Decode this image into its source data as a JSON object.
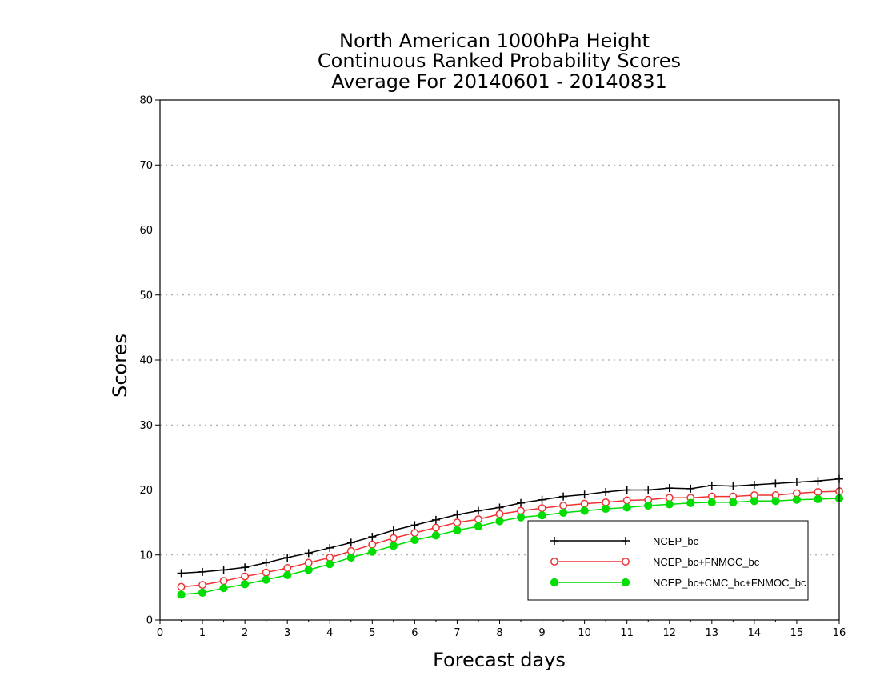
{
  "chart_data": {
    "type": "line",
    "title": [
      "North American 1000hPa Height",
      "Continuous Ranked Probability Scores",
      "Average For 20140601 - 20140831"
    ],
    "xlabel": "Forecast days",
    "ylabel": "Scores",
    "xlim": [
      0,
      16
    ],
    "ylim": [
      0,
      80
    ],
    "xticks": [
      0,
      1,
      2,
      3,
      4,
      5,
      6,
      7,
      8,
      9,
      10,
      11,
      12,
      13,
      14,
      15,
      16
    ],
    "yticks": [
      0,
      10,
      20,
      30,
      40,
      50,
      60,
      70,
      80
    ],
    "grid": "horizontal dotted",
    "legend_position": "lower-right",
    "x": [
      0.5,
      1,
      1.5,
      2,
      2.5,
      3,
      3.5,
      4,
      4.5,
      5,
      5.5,
      6,
      6.5,
      7,
      7.5,
      8,
      8.5,
      9,
      9.5,
      10,
      10.5,
      11,
      11.5,
      12,
      12.5,
      13,
      13.5,
      14,
      14.5,
      15,
      15.5,
      16
    ],
    "series": [
      {
        "name": "NCEP_bc",
        "color": "#000000",
        "marker": "plus",
        "values": [
          7.2,
          7.4,
          7.7,
          8.1,
          8.8,
          9.6,
          10.3,
          11.1,
          11.9,
          12.8,
          13.8,
          14.6,
          15.4,
          16.2,
          16.8,
          17.3,
          18.0,
          18.5,
          19.0,
          19.3,
          19.7,
          20.0,
          20.0,
          20.3,
          20.2,
          20.7,
          20.6,
          20.8,
          21.0,
          21.2,
          21.4,
          21.7
        ]
      },
      {
        "name": "NCEP_bc+FNMOC_bc",
        "color": "#ee3333",
        "marker": "open-circle",
        "values": [
          5.1,
          5.4,
          6.0,
          6.7,
          7.3,
          8.0,
          8.8,
          9.6,
          10.6,
          11.6,
          12.6,
          13.4,
          14.2,
          15.0,
          15.5,
          16.3,
          16.8,
          17.2,
          17.6,
          17.9,
          18.1,
          18.4,
          18.5,
          18.8,
          18.8,
          19.0,
          19.0,
          19.2,
          19.2,
          19.5,
          19.7,
          19.8
        ]
      },
      {
        "name": "NCEP_bc+CMC_bc+FNMOC_bc",
        "color": "#00dd00",
        "marker": "filled-circle",
        "values": [
          3.9,
          4.2,
          4.9,
          5.5,
          6.2,
          6.9,
          7.7,
          8.6,
          9.6,
          10.5,
          11.4,
          12.3,
          13.0,
          13.8,
          14.4,
          15.2,
          15.8,
          16.1,
          16.5,
          16.8,
          17.1,
          17.3,
          17.6,
          17.8,
          18.0,
          18.1,
          18.1,
          18.3,
          18.3,
          18.5,
          18.6,
          18.7
        ]
      }
    ]
  }
}
